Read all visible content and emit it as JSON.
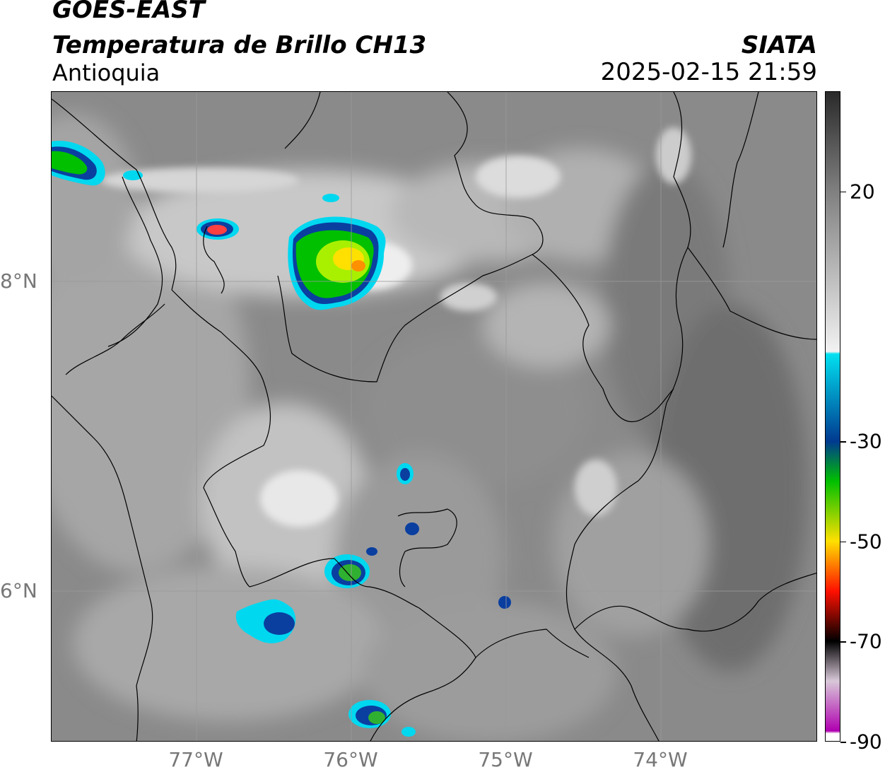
{
  "header": {
    "satellite": "GOES-EAST",
    "product": "Temperatura de Brillo CH13",
    "region": "Antioquia",
    "organization": "SIATA",
    "timestamp": "2025-02-15 21:59"
  },
  "map": {
    "lat_labels": [
      {
        "text": "8°N",
        "lat": 8
      },
      {
        "text": "6°N",
        "lat": 6
      }
    ],
    "lon_labels": [
      {
        "text": "77°W",
        "lon": -77
      },
      {
        "text": "76°W",
        "lon": -76
      },
      {
        "text": "75°W",
        "lon": -75
      },
      {
        "text": "74°W",
        "lon": -74
      }
    ]
  },
  "colorbar": {
    "min": -90,
    "max": 40,
    "labels": [
      {
        "text": "20",
        "value": 20
      },
      {
        "text": "-30",
        "value": -30
      },
      {
        "text": "-50",
        "value": -50
      },
      {
        "text": "-70",
        "value": -70
      },
      {
        "text": "-90",
        "value": -90
      }
    ],
    "colors": {
      "warm": "#2a2a2a",
      "cloudy": "#f2f2f2",
      "cyan": "#00e0f0",
      "blue": "#003a90",
      "green": "#00c000",
      "yellow": "#ffe000",
      "red": "#ff1000",
      "black": "#000000",
      "magenta": "#b000b0"
    }
  }
}
